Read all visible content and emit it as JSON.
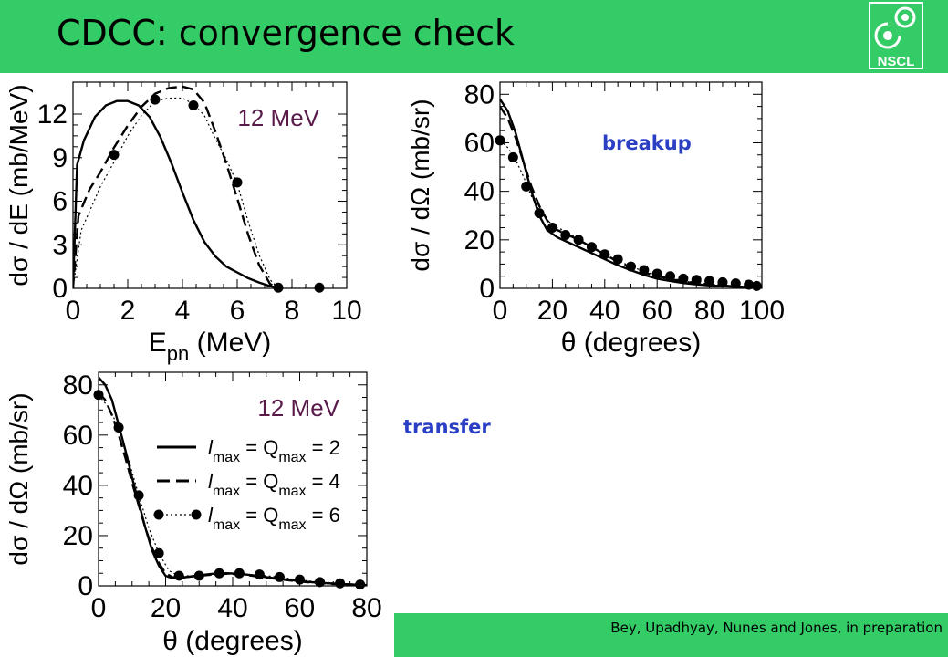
{
  "slide": {
    "title": "CDCC: convergence check",
    "logo_text": "NSCL",
    "credit": "Bey, Upadhyay, Nunes and Jones, in preparation",
    "label_breakup": "breakup",
    "label_transfer": "transfer"
  },
  "colors": {
    "bar": "#33cc66",
    "label": "#2b3fc4",
    "energy_text": "#5a1a4a"
  },
  "chart_data": [
    {
      "id": "energy",
      "type": "line",
      "annotation": "12 MeV",
      "xlabel_main": "E",
      "xlabel_sub": "pn",
      "xlabel_rest": " (MeV)",
      "ylabel": "dσ / dE (mb/MeV)",
      "xlim": [
        0,
        10
      ],
      "ylim": [
        0,
        14.2
      ],
      "xticks": [
        0,
        2,
        4,
        6,
        8,
        10
      ],
      "xtick_labels": [
        "0",
        "2",
        "4",
        "6",
        "8",
        "10"
      ],
      "yticks": [
        0,
        3,
        6,
        9,
        12
      ],
      "ytick_labels": [
        "0",
        "3",
        "6",
        "9",
        "12"
      ],
      "series": [
        {
          "style": "solid",
          "x": [
            0,
            0.15,
            0.4,
            0.8,
            1.2,
            1.6,
            2.0,
            2.4,
            2.8,
            3.2,
            3.6,
            4.0,
            4.4,
            4.8,
            5.2,
            5.6,
            6.0,
            6.4,
            6.8,
            7.2,
            7.6
          ],
          "y": [
            0,
            8.5,
            10.2,
            11.8,
            12.6,
            12.9,
            12.9,
            12.6,
            11.8,
            10.4,
            8.6,
            6.6,
            4.7,
            3.2,
            2.2,
            1.5,
            1.1,
            0.7,
            0.4,
            0.15,
            0
          ]
        },
        {
          "style": "dashed",
          "x": [
            0,
            0.2,
            0.6,
            1.0,
            1.5,
            2.0,
            2.5,
            3.0,
            3.5,
            4.0,
            4.4,
            4.8,
            5.2,
            5.6,
            6.0,
            6.4,
            6.8,
            7.2,
            7.5
          ],
          "y": [
            0,
            5.0,
            6.8,
            8.0,
            9.7,
            11.2,
            12.5,
            13.4,
            13.8,
            13.9,
            13.7,
            12.8,
            10.8,
            8.6,
            6.2,
            3.7,
            1.6,
            0.3,
            0
          ]
        },
        {
          "style": "dotted-markers",
          "x": [
            0,
            0.3,
            1.0,
            1.5,
            2.0,
            2.5,
            3.0,
            3.5,
            4.0,
            4.4,
            4.8,
            5.2,
            5.6,
            6.0,
            6.4,
            6.8,
            7.2,
            7.5,
            9.0
          ],
          "y": [
            0,
            4.0,
            7.0,
            8.7,
            10.5,
            11.9,
            12.9,
            13.1,
            13.1,
            12.7,
            11.9,
            10.3,
            8.9,
            7.2,
            4.6,
            2.3,
            0.6,
            0,
            0
          ],
          "markers": [
            [
              1.5,
              9.2
            ],
            [
              3.0,
              13.0
            ],
            [
              4.4,
              12.6
            ],
            [
              6.0,
              7.3
            ],
            [
              7.5,
              0.05
            ],
            [
              9.0,
              0.05
            ]
          ]
        }
      ]
    },
    {
      "id": "breakup",
      "type": "line",
      "xlabel_main": "θ (degrees)",
      "ylabel": "dσ / dΩ (mb/sr)",
      "xlim": [
        0,
        100
      ],
      "ylim": [
        0,
        85
      ],
      "xticks": [
        0,
        20,
        40,
        60,
        80,
        100
      ],
      "xtick_labels": [
        "0",
        "20",
        "40",
        "60",
        "80",
        "100"
      ],
      "yticks": [
        0,
        20,
        40,
        60,
        80
      ],
      "ytick_labels": [
        "0",
        "20",
        "40",
        "60",
        "80"
      ],
      "series": [
        {
          "style": "solid",
          "x": [
            0,
            3,
            6,
            9,
            12,
            15,
            18,
            22,
            26,
            30,
            35,
            40,
            45,
            50,
            55,
            60,
            65,
            70,
            75,
            80,
            85,
            90,
            95,
            98
          ],
          "y": [
            78,
            73,
            64,
            52,
            40,
            30,
            24,
            21,
            19,
            17,
            14.5,
            12,
            9.5,
            7.5,
            5.5,
            4,
            3,
            2.2,
            1.6,
            1.2,
            0.9,
            0.6,
            0.4,
            0.3
          ]
        },
        {
          "style": "dashed",
          "x": [
            0,
            3,
            6,
            9,
            12,
            15,
            18,
            22,
            26,
            30,
            35,
            40,
            45,
            50,
            55,
            60,
            65,
            70,
            75,
            80,
            85,
            90,
            95,
            98
          ],
          "y": [
            75,
            70,
            62,
            52,
            42,
            34,
            28,
            24,
            22,
            20,
            17,
            14,
            11,
            8.5,
            6.5,
            5,
            3.8,
            2.8,
            2,
            1.5,
            1.1,
            0.8,
            0.5,
            0.4
          ]
        },
        {
          "style": "dotted-markers",
          "x": [
            0,
            3,
            6,
            9,
            12,
            15,
            18,
            22,
            26,
            30,
            35,
            40,
            45,
            50,
            55,
            60,
            65,
            70,
            75,
            80,
            85,
            90,
            95,
            98
          ],
          "y": [
            61,
            58,
            53,
            46,
            38,
            32,
            28,
            25,
            23,
            20,
            17,
            14,
            11.5,
            9,
            7,
            5.5,
            4.2,
            3.2,
            2.4,
            1.8,
            1.3,
            1,
            0.7,
            0.5
          ],
          "markers": [
            [
              0,
              61
            ],
            [
              5,
              54
            ],
            [
              10,
              42
            ],
            [
              15,
              31
            ],
            [
              20,
              25
            ],
            [
              25,
              22
            ],
            [
              30,
              20
            ],
            [
              35,
              17
            ],
            [
              40,
              14
            ],
            [
              45,
              12
            ],
            [
              50,
              9
            ],
            [
              55,
              7.5
            ],
            [
              60,
              6
            ],
            [
              65,
              5
            ],
            [
              70,
              4
            ],
            [
              75,
              3.5
            ],
            [
              80,
              3
            ],
            [
              85,
              2.5
            ],
            [
              90,
              2
            ],
            [
              95,
              1.5
            ],
            [
              98,
              1
            ]
          ]
        }
      ]
    },
    {
      "id": "transfer",
      "type": "line",
      "annotation": "12 MeV",
      "xlabel_main": "θ (degrees)",
      "ylabel": "dσ / dΩ (mb/sr)",
      "xlim": [
        0,
        80
      ],
      "ylim": [
        0,
        85
      ],
      "xticks": [
        0,
        20,
        40,
        60,
        80
      ],
      "xtick_labels": [
        "0",
        "20",
        "40",
        "60",
        "80"
      ],
      "yticks": [
        0,
        20,
        40,
        60,
        80
      ],
      "ytick_labels": [
        "0",
        "20",
        "40",
        "60",
        "80"
      ],
      "series": [
        {
          "name": "l_max = Q_max = 2",
          "style": "solid",
          "x": [
            0,
            2,
            4,
            6,
            8,
            10,
            12,
            14,
            16,
            18,
            20,
            22,
            24,
            26,
            30,
            34,
            38,
            42,
            46,
            50,
            54,
            58,
            62,
            66,
            70,
            74,
            78,
            80
          ],
          "y": [
            83,
            80,
            74,
            64,
            54,
            43,
            33,
            23,
            14,
            8,
            4,
            3,
            3,
            3.5,
            4.2,
            4.8,
            5,
            4.8,
            4.2,
            3.5,
            2.8,
            2.2,
            1.6,
            1.2,
            0.9,
            0.6,
            0.4,
            0.3
          ]
        },
        {
          "name": "l_max = Q_max = 4",
          "style": "dashed",
          "x": [
            0,
            2,
            4,
            6,
            8,
            10,
            12,
            14,
            16,
            18,
            20,
            22,
            24,
            26,
            30,
            34,
            38,
            42,
            46,
            50,
            54,
            58,
            62,
            66,
            70,
            74,
            78,
            80
          ],
          "y": [
            77,
            74,
            68,
            60,
            51,
            41,
            32,
            23,
            15,
            9,
            5,
            3.5,
            3.3,
            3.5,
            4,
            4.5,
            4.8,
            4.6,
            4,
            3.3,
            2.6,
            2,
            1.5,
            1.1,
            0.8,
            0.6,
            0.4,
            0.3
          ]
        },
        {
          "name": "l_max = Q_max = 6",
          "style": "dotted-markers",
          "x": [
            0,
            3,
            6,
            9,
            12,
            15,
            18,
            21,
            24,
            30,
            36,
            42,
            48,
            54,
            60,
            66,
            72,
            78
          ],
          "y": [
            76,
            71,
            63,
            50,
            36,
            23,
            13,
            6,
            4,
            4,
            4.5,
            4.8,
            4.3,
            3.5,
            2.3,
            1.5,
            1,
            0.5
          ],
          "markers": [
            [
              0,
              76
            ],
            [
              6,
              63
            ],
            [
              12,
              36
            ],
            [
              18,
              13
            ],
            [
              24,
              4
            ],
            [
              30,
              4
            ],
            [
              36,
              5
            ],
            [
              42,
              5
            ],
            [
              48,
              4.5
            ],
            [
              54,
              3.5
            ],
            [
              60,
              2.5
            ],
            [
              66,
              1.5
            ],
            [
              72,
              1
            ],
            [
              78,
              0.5
            ]
          ]
        }
      ]
    }
  ],
  "legend": {
    "rows": [
      {
        "italic": "l",
        "sub1": "max",
        "mid": " = Q",
        "sub2": "max",
        "value": " = 2"
      },
      {
        "italic": "l",
        "sub1": "max",
        "mid": " = Q",
        "sub2": "max",
        "value": " = 4"
      },
      {
        "italic": "l",
        "sub1": "max",
        "mid": " = Q",
        "sub2": "max",
        "value": " = 6"
      }
    ]
  }
}
